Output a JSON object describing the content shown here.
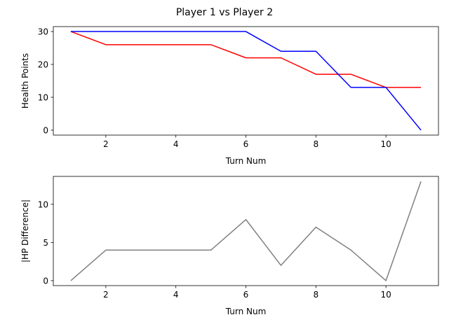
{
  "figure": {
    "title": "Player 1 vs Player 2"
  },
  "colors": {
    "player1": "#0000ff",
    "player2": "#ff0000",
    "difference": "#808080"
  },
  "chart_data": [
    {
      "type": "line",
      "xlabel": "Turn Num",
      "ylabel": "Health Points",
      "xlim": [
        0.5,
        11.5
      ],
      "ylim": [
        -1.5,
        31.5
      ],
      "xticks": [
        2,
        4,
        6,
        8,
        10
      ],
      "yticks": [
        0,
        10,
        20,
        30
      ],
      "grid": false,
      "x": [
        1,
        2,
        3,
        4,
        5,
        6,
        7,
        8,
        9,
        10,
        11
      ],
      "series": [
        {
          "color": "#ff0000",
          "values": [
            30,
            26,
            26,
            26,
            26,
            22,
            22,
            17,
            17,
            13,
            13
          ]
        },
        {
          "color": "#0000ff",
          "values": [
            30,
            30,
            30,
            30,
            30,
            30,
            24,
            24,
            13,
            13,
            0
          ]
        }
      ]
    },
    {
      "type": "line",
      "xlabel": "Turn Num",
      "ylabel": "|HP Difference|",
      "xlim": [
        0.5,
        11.5
      ],
      "ylim": [
        -0.65,
        13.65
      ],
      "xticks": [
        2,
        4,
        6,
        8,
        10
      ],
      "yticks": [
        0,
        5,
        10
      ],
      "grid": false,
      "x": [
        1,
        2,
        3,
        4,
        5,
        6,
        7,
        8,
        9,
        10,
        11
      ],
      "series": [
        {
          "color": "#808080",
          "values": [
            0,
            4,
            4,
            4,
            4,
            8,
            2,
            7,
            4,
            0,
            13
          ]
        }
      ]
    }
  ]
}
